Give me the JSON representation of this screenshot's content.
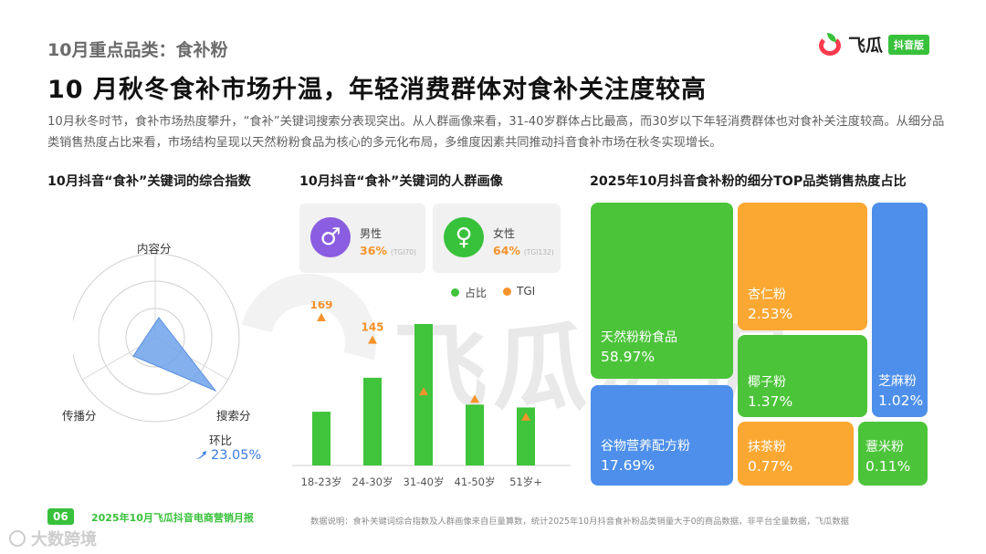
{
  "header": {
    "section_label": "10月重点品类：食补粉",
    "headline": "10 月秋冬食补市场升温，年轻消费群体对食补关注度较高",
    "intro": "10月秋冬时节，食补市场热度攀升，“食补”关键词搜索分表现突出。从人群画像来看，31-40岁群体占比最高，而30岁以下年轻消费群体也对食补关注度较高。从细分品类销售热度占比来看，市场结构呈现以天然粉粉食品为核心的多元化布局，多维度因素共同推动抖音食补市场在秋冬实现增长。"
  },
  "logo": {
    "text": "飞瓜",
    "badge": "抖音版"
  },
  "watermark": "飞瓜数据",
  "radar": {
    "title": "10月抖音“食补”关键词的综合指数",
    "axes": [
      "内容分",
      "搜索分",
      "传播分"
    ],
    "growth_label": "环比",
    "growth_value": "23.05%",
    "color": "#6fa2ea"
  },
  "demographics": {
    "title": "10月抖音“食补”关键词的人群画像",
    "male": {
      "label": "男性",
      "pct": "36%",
      "tgi": "(TGI70)",
      "color": "#8b5de0",
      "icon": "male-symbol"
    },
    "female": {
      "label": "女性",
      "pct": "64%",
      "tgi": "(TGI132)",
      "color": "#38c13b",
      "icon": "female-symbol"
    },
    "legend": {
      "share": "占比",
      "tgi": "TGI"
    }
  },
  "chart_data": {
    "type": "bar",
    "categories": [
      "18-23岁",
      "24-30岁",
      "31-40岁",
      "41-50岁",
      "51岁+"
    ],
    "series": [
      {
        "name": "占比",
        "values": [
          0.38,
          0.62,
          1.0,
          0.43,
          0.41
        ],
        "color": "#3fc43b"
      },
      {
        "name": "TGI",
        "values": [
          169,
          145,
          90,
          82,
          63
        ],
        "labels": [
          "169",
          "145",
          "",
          "",
          ""
        ],
        "color": "#f5932b"
      }
    ]
  },
  "treemap": {
    "title": "2025年10月抖音食补粉的细分TOP品类销售热度占比",
    "items": [
      {
        "name": "天然粉粉食品",
        "pct": "58.97%",
        "color": "#4cc43a"
      },
      {
        "name": "谷物营养配方粉",
        "pct": "17.69%",
        "color": "#4d8fea"
      },
      {
        "name": "杏仁粉",
        "pct": "2.53%",
        "color": "#fba833"
      },
      {
        "name": "椰子粉",
        "pct": "1.37%",
        "color": "#4cc43a"
      },
      {
        "name": "芝麻粉",
        "pct": "1.02%",
        "color": "#4d8fea"
      },
      {
        "name": "抹茶粉",
        "pct": "0.77%",
        "color": "#fba833"
      },
      {
        "name": "薏米粉",
        "pct": "0.11%",
        "color": "#4cc43a"
      }
    ]
  },
  "footer": {
    "page": "06",
    "report": "2025年10月飞瓜抖音电商营销月报",
    "note": "数据说明：食补关键词综合指数及人群画像来自巨量算数，统计2025年10月抖音食补粉品类销量大于0的商品数据，非平台全量数据，飞瓜数据",
    "corner_watermark": "大数跨境"
  }
}
